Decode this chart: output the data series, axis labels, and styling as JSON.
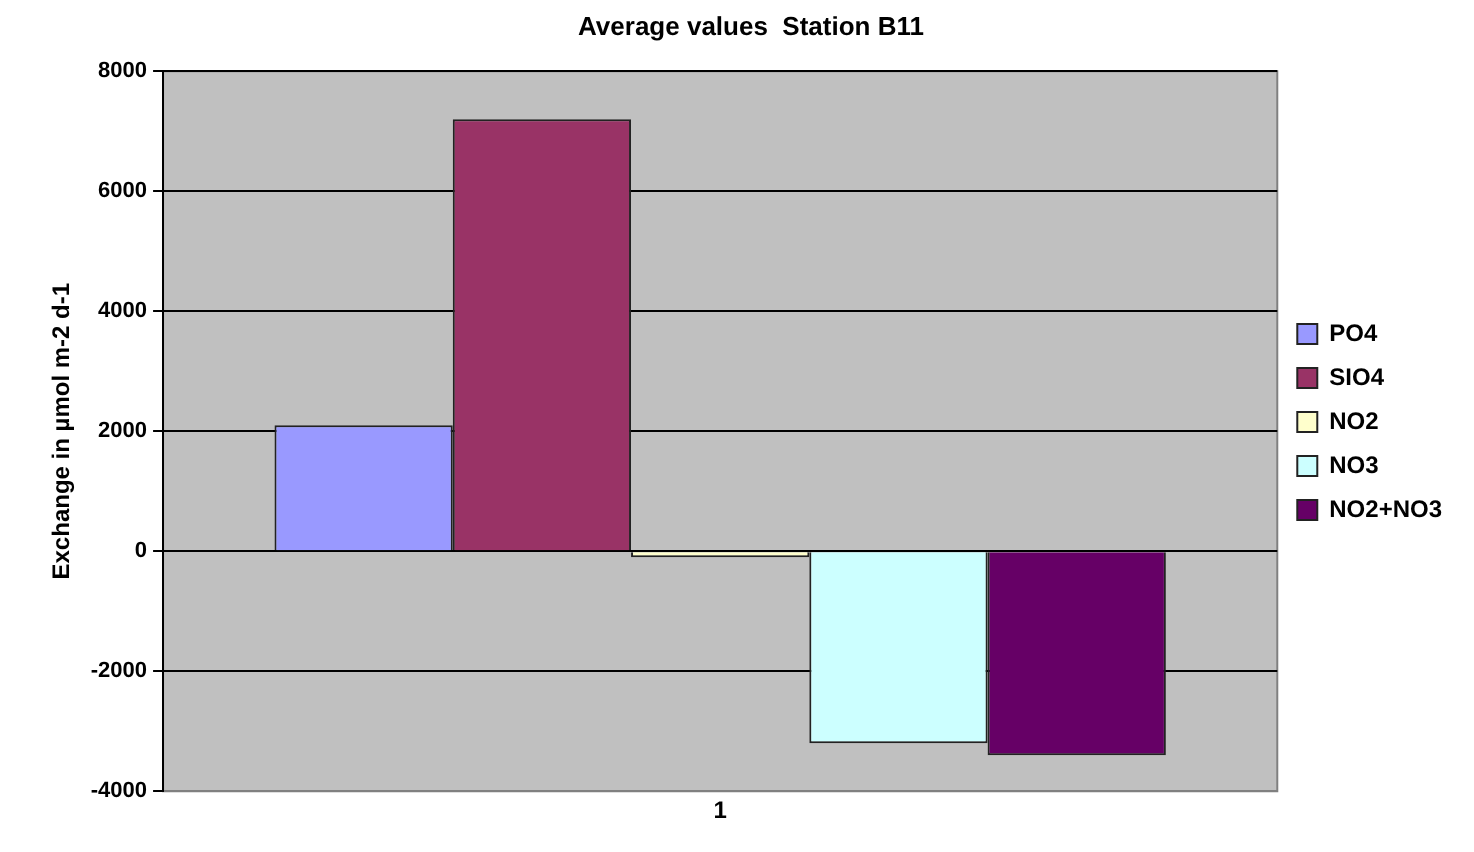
{
  "chart_data": {
    "type": "bar",
    "title": "Average values  Station B11",
    "ylabel": "Exchange in µmol m-2 d-1",
    "categories": [
      "1"
    ],
    "series": [
      {
        "name": "PO4",
        "color": "#9999ff",
        "values": [
          2100
        ]
      },
      {
        "name": "SIO4",
        "color": "#993366",
        "values": [
          7200
        ]
      },
      {
        "name": "NO2",
        "color": "#ffffcc",
        "values": [
          -100
        ]
      },
      {
        "name": "NO3",
        "color": "#ccffff",
        "values": [
          -3200
        ]
      },
      {
        "name": "NO2+NO3",
        "color": "#660066",
        "values": [
          -3400
        ]
      }
    ],
    "ylim": [
      -4000,
      8000
    ],
    "yticks": [
      -4000,
      -2000,
      0,
      2000,
      4000,
      6000,
      8000
    ],
    "grid": "y",
    "legend": "right"
  }
}
